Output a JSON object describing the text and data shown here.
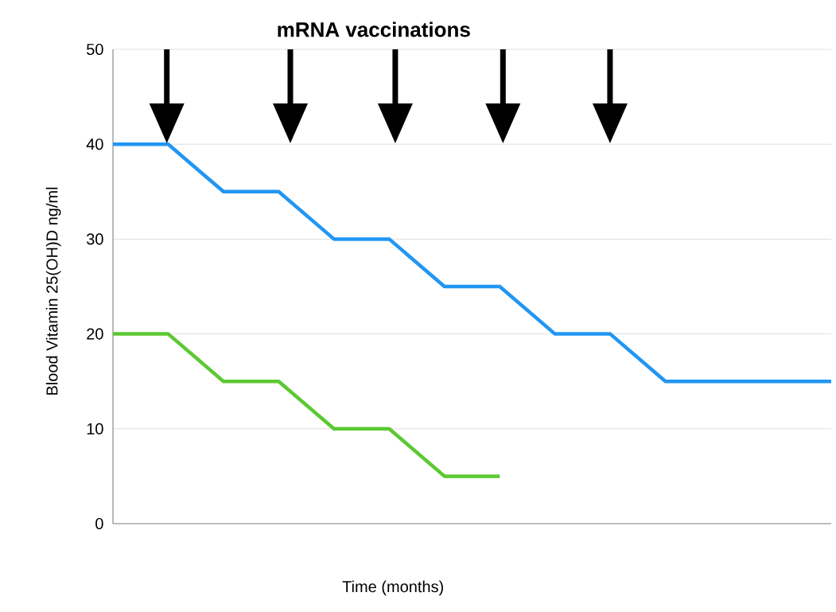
{
  "chart_data": {
    "type": "line",
    "title": "mRNA vaccinations",
    "xlabel": "Time (months)",
    "ylabel": "Blood Vitamin 25(OH)D ng/ml",
    "categories": [
      null,
      null,
      null,
      null,
      null,
      null,
      null,
      null,
      null,
      null,
      null,
      null,
      null,
      null
    ],
    "series": [
      {
        "color": "#2196f3",
        "values": [
          40,
          40,
          35,
          35,
          30,
          30,
          25,
          25,
          20,
          20,
          15,
          15,
          15,
          15
        ]
      },
      {
        "color": "#5cc832",
        "values": [
          20,
          20,
          15,
          15,
          10,
          10,
          5,
          5,
          null,
          null,
          null,
          null,
          null,
          null
        ]
      }
    ],
    "ylim": [
      0,
      50
    ],
    "yticks": [
      0,
      10,
      20,
      30,
      40,
      50
    ],
    "grid": "y",
    "marker": "none",
    "line_style": "solid"
  }
}
